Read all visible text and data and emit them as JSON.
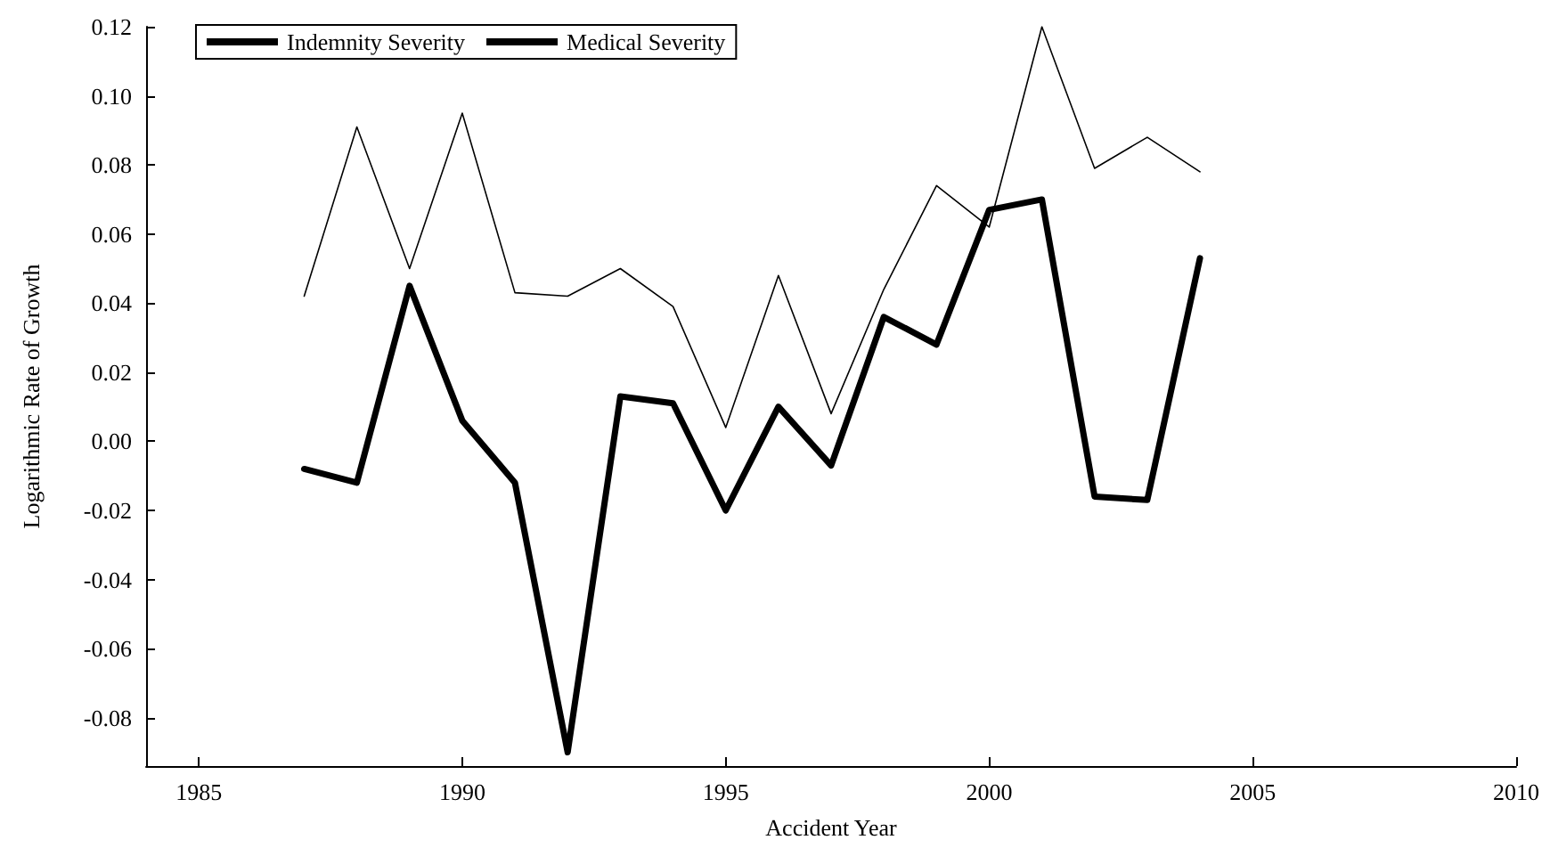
{
  "chart_data": {
    "type": "line",
    "xlabel": "Accident Year",
    "ylabel": "Logarithmic Rate of Growth",
    "x": [
      1987,
      1988,
      1989,
      1990,
      1991,
      1992,
      1993,
      1994,
      1995,
      1996,
      1997,
      1998,
      1999,
      2000,
      2001,
      2002,
      2003,
      2004
    ],
    "series": [
      {
        "name": "Indemnity Severity",
        "color": "#000000",
        "values": [
          -0.008,
          -0.012,
          0.045,
          0.006,
          -0.012,
          -0.09,
          0.013,
          0.011,
          -0.02,
          0.01,
          -0.007,
          0.036,
          0.028,
          0.067,
          0.07,
          -0.016,
          -0.017,
          0.053
        ]
      },
      {
        "name": "Medical Severity",
        "color": "#000000",
        "values": [
          0.042,
          0.091,
          0.05,
          0.095,
          0.043,
          0.042,
          0.05,
          0.039,
          0.004,
          0.048,
          0.008,
          0.044,
          0.074,
          0.062,
          0.12,
          0.079,
          0.088,
          0.078
        ]
      }
    ],
    "xlim": [
      1984,
      2010
    ],
    "xticks": [
      1985,
      1990,
      1995,
      2000,
      2005,
      2010
    ],
    "ylim": [
      -0.094,
      0.12
    ],
    "yticks": [
      {
        "value": -0.08,
        "label": "-0.08"
      },
      {
        "value": -0.06,
        "label": "-0.06"
      },
      {
        "value": -0.04,
        "label": "-0.04"
      },
      {
        "value": -0.02,
        "label": "-0.02"
      },
      {
        "value": 0,
        "label": "0.00"
      },
      {
        "value": 0.02,
        "label": "0.02"
      },
      {
        "value": 0.04,
        "label": "0.04"
      },
      {
        "value": 0.06,
        "label": "0.06"
      },
      {
        "value": 0.08,
        "label": "0.08"
      },
      {
        "value": 0.1,
        "label": "0.10"
      },
      {
        "value": 0.12,
        "label": "0.12"
      }
    ],
    "legend": "top left",
    "marker": "none",
    "line_style": "solid",
    "grid": false
  }
}
